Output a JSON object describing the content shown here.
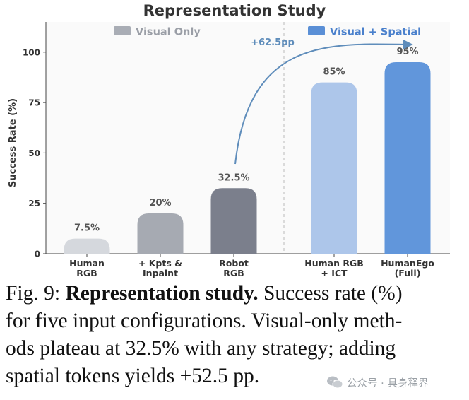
{
  "chart_data": {
    "type": "bar",
    "title": "Representation Study",
    "ylabel": "Success Rate (%)",
    "ylim": [
      0,
      115
    ],
    "yticks": [
      0,
      25,
      50,
      75,
      100
    ],
    "grid": false,
    "legend_placement": "top",
    "groups": [
      {
        "name": "Visual Only",
        "color": "#a9adb5"
      },
      {
        "name": "Visual + Spatial",
        "color": "#5a8fd6"
      }
    ],
    "categories": [
      {
        "label": [
          "Human",
          "RGB"
        ],
        "value": 7.5,
        "value_label": "7.5%",
        "group": "Visual Only",
        "color": "#d5d8dd"
      },
      {
        "label": [
          "+ Kpts &",
          "Inpaint"
        ],
        "value": 20,
        "value_label": "20%",
        "group": "Visual Only",
        "color": "#a6aab2"
      },
      {
        "label": [
          "Robot",
          "RGB"
        ],
        "value": 32.5,
        "value_label": "32.5%",
        "group": "Visual Only",
        "color": "#7b7f8c"
      },
      {
        "label": [
          "Human RGB",
          "+ ICT"
        ],
        "value": 85,
        "value_label": "85%",
        "group": "Visual + Spatial",
        "color": "#adc6ea"
      },
      {
        "label": [
          "HumanEgo",
          "(Full)"
        ],
        "value": 95,
        "value_label": "95%",
        "group": "Visual + Spatial",
        "color": "#6196db"
      }
    ],
    "annotation": {
      "text": "+62.5pp",
      "from_category": 2,
      "to_category": 4,
      "color": "#5f8dbb"
    }
  },
  "caption": {
    "prefix": "Fig. 9: ",
    "bold": "Representation study.",
    "line1_rest": " Success rate (%)",
    "line2": "for five input configurations. Visual-only meth-",
    "line3": "ods plateau at 32.5% with any strategy; adding",
    "line4": "spatial tokens yields +52.5 pp."
  },
  "watermark": {
    "text": "公众号 · 具身释界"
  }
}
